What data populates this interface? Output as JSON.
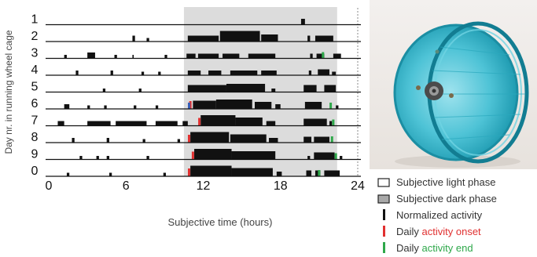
{
  "chart_data": {
    "type": "actogram",
    "ylabel": "Day nr. in running wheel cage",
    "xlabel": "Subjective time (hours)",
    "x_ticks": [
      "0",
      "6",
      "12",
      "18",
      "24"
    ],
    "x_tick_values": [
      0,
      6,
      12,
      18,
      24
    ],
    "xlim": [
      0,
      24
    ],
    "day_labels": [
      "1",
      "2",
      "3",
      "4",
      "5",
      "6",
      "7",
      "8",
      "9",
      "0"
    ],
    "dark_phase_hours": [
      10.5,
      22.4
    ],
    "colors": {
      "light_phase": "#ffffff",
      "dark_phase": "#dcdcdc",
      "activity": "#111111",
      "onset": "#e03030",
      "end": "#2ea84a",
      "blue_mark": "#3a5fb8"
    },
    "days": [
      {
        "day": "1",
        "onset": null,
        "end": null,
        "activity": [
          [
            19.6,
            19.9,
            0.5
          ]
        ]
      },
      {
        "day": "2",
        "onset": null,
        "end": null,
        "activity": [
          [
            6.5,
            6.7,
            0.5
          ],
          [
            7.6,
            7.8,
            0.3
          ],
          [
            10.8,
            13.2,
            0.5
          ],
          [
            13.3,
            16.4,
            0.9
          ],
          [
            16.5,
            17.8,
            0.6
          ],
          [
            20.1,
            20.3,
            0.5
          ],
          [
            20.7,
            22.1,
            0.5
          ]
        ]
      },
      {
        "day": "3",
        "onset": null,
        "end": 21.3,
        "activity": [
          [
            1.2,
            1.4,
            0.3
          ],
          [
            3.0,
            3.6,
            0.5
          ],
          [
            5.1,
            5.3,
            0.3
          ],
          [
            6.5,
            6.6,
            0.3
          ],
          [
            9.0,
            9.2,
            0.3
          ],
          [
            10.7,
            11.4,
            0.4
          ],
          [
            11.6,
            13.2,
            0.4
          ],
          [
            13.5,
            14.8,
            0.4
          ],
          [
            15.5,
            17.6,
            0.4
          ],
          [
            20.3,
            20.5,
            0.4
          ],
          [
            20.8,
            21.4,
            0.4
          ],
          [
            22.1,
            22.7,
            0.4
          ]
        ]
      },
      {
        "day": "4",
        "onset": null,
        "end": null,
        "activity": [
          [
            2.1,
            2.3,
            0.4
          ],
          [
            4.8,
            5.0,
            0.4
          ],
          [
            7.2,
            7.4,
            0.3
          ],
          [
            8.5,
            8.7,
            0.3
          ],
          [
            10.8,
            11.8,
            0.4
          ],
          [
            12.4,
            13.4,
            0.4
          ],
          [
            14.1,
            16.2,
            0.4
          ],
          [
            16.5,
            17.7,
            0.4
          ],
          [
            20.2,
            20.4,
            0.4
          ],
          [
            20.9,
            21.8,
            0.5
          ],
          [
            22.0,
            22.3,
            0.3
          ]
        ]
      },
      {
        "day": "5",
        "onset": null,
        "end": null,
        "activity": [
          [
            4.2,
            4.4,
            0.3
          ],
          [
            7.0,
            7.2,
            0.3
          ],
          [
            10.8,
            13.8,
            0.6
          ],
          [
            13.8,
            16.8,
            0.7
          ],
          [
            17.3,
            17.6,
            0.3
          ],
          [
            19.8,
            20.8,
            0.6
          ],
          [
            21.4,
            22.3,
            0.6
          ]
        ]
      },
      {
        "day": "6",
        "onset": 11.0,
        "end": 21.9,
        "blue": 10.9,
        "activity": [
          [
            1.2,
            1.6,
            0.4
          ],
          [
            3.0,
            3.2,
            0.3
          ],
          [
            4.3,
            4.5,
            0.3
          ],
          [
            6.6,
            6.8,
            0.3
          ],
          [
            8.3,
            8.5,
            0.3
          ],
          [
            11.2,
            13.0,
            0.7
          ],
          [
            13.0,
            15.8,
            0.8
          ],
          [
            16.0,
            17.3,
            0.6
          ],
          [
            17.6,
            18.0,
            0.4
          ],
          [
            19.9,
            21.2,
            0.6
          ],
          [
            22.3,
            22.5,
            0.3
          ]
        ]
      },
      {
        "day": "7",
        "onset": 11.7,
        "end": 22.1,
        "activity": [
          [
            0.7,
            1.2,
            0.4
          ],
          [
            3.0,
            4.8,
            0.4
          ],
          [
            5.2,
            7.6,
            0.4
          ],
          [
            8.3,
            10.0,
            0.4
          ],
          [
            10.4,
            10.8,
            0.4
          ],
          [
            11.8,
            14.5,
            0.9
          ],
          [
            14.5,
            16.6,
            0.7
          ],
          [
            16.9,
            17.6,
            0.4
          ],
          [
            19.8,
            21.6,
            0.6
          ],
          [
            21.8,
            22.0,
            0.4
          ]
        ]
      },
      {
        "day": "8",
        "onset": 10.9,
        "end": 22.0,
        "activity": [
          [
            1.8,
            2.0,
            0.4
          ],
          [
            4.5,
            4.7,
            0.4
          ],
          [
            7.3,
            7.5,
            0.3
          ],
          [
            10.0,
            10.2,
            0.3
          ],
          [
            11.0,
            14.0,
            0.9
          ],
          [
            14.1,
            16.9,
            0.7
          ],
          [
            17.1,
            17.8,
            0.4
          ],
          [
            19.8,
            20.4,
            0.5
          ],
          [
            20.6,
            21.8,
            0.5
          ]
        ]
      },
      {
        "day": "9",
        "onset": 11.2,
        "end": 22.3,
        "activity": [
          [
            2.4,
            2.6,
            0.3
          ],
          [
            3.7,
            3.9,
            0.3
          ],
          [
            4.5,
            4.7,
            0.3
          ],
          [
            7.6,
            7.8,
            0.3
          ],
          [
            11.3,
            14.2,
            0.9
          ],
          [
            14.2,
            17.6,
            0.7
          ],
          [
            20.1,
            20.3,
            0.3
          ],
          [
            20.6,
            22.2,
            0.6
          ],
          [
            22.6,
            22.8,
            0.3
          ]
        ]
      },
      {
        "day": "0",
        "onset": 10.9,
        "end": 21.0,
        "activity": [
          [
            1.4,
            1.6,
            0.3
          ],
          [
            4.7,
            4.9,
            0.3
          ],
          [
            8.9,
            9.1,
            0.3
          ],
          [
            11.0,
            14.2,
            0.9
          ],
          [
            14.2,
            17.4,
            0.7
          ],
          [
            17.7,
            18.1,
            0.4
          ],
          [
            20.0,
            20.4,
            0.5
          ],
          [
            20.7,
            21.1,
            0.5
          ],
          [
            21.4,
            22.6,
            0.5
          ]
        ]
      }
    ]
  },
  "legend": [
    {
      "label": "Subjective light phase",
      "swatch": "light"
    },
    {
      "label": "Subjective dark phase",
      "swatch": "dark"
    },
    {
      "label": "Normalized activity",
      "swatch": "activity"
    },
    {
      "label_prefix": "Daily ",
      "label_colored": "activity onset",
      "swatch": "onset"
    },
    {
      "label_prefix": "Daily ",
      "label_colored": "activity end",
      "swatch": "end"
    }
  ],
  "photo": {
    "subject": "running-wheel"
  }
}
